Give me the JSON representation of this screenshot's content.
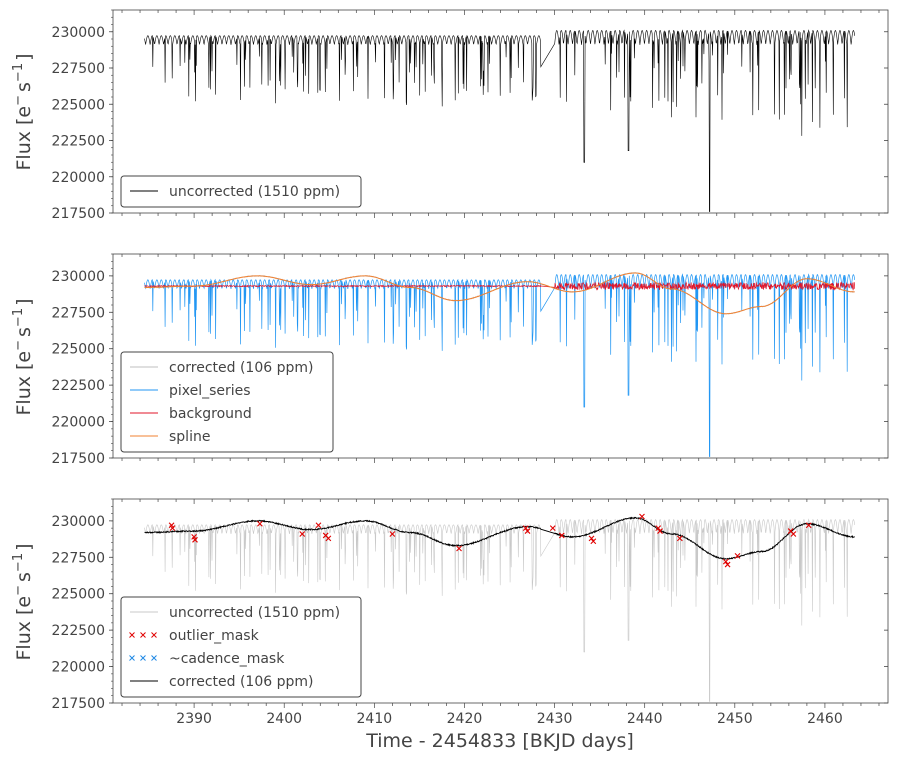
{
  "colors": {
    "uncorrected": "#000000",
    "uncorrected_faint": "#c8c8c8",
    "corrected_faint": "#bfbfbf",
    "pixel_series": "#2196f3",
    "background": "#e0152a",
    "spline": "#f08030",
    "outlier": "#e00000",
    "cadence": "#1e88e5",
    "corrected": "#000000",
    "text": "#444444"
  },
  "chart_data": [
    {
      "type": "line",
      "panel": "top",
      "ylabel_main": "Flux [e",
      "ylabel_sup1": "−",
      "ylabel_mid": "s",
      "ylabel_sup2": "−1",
      "ylabel_end": "]",
      "xlim": [
        2381,
        2467
      ],
      "ylim": [
        217500,
        231500
      ],
      "yticks": [
        217500,
        220000,
        222500,
        225000,
        227500,
        230000
      ],
      "ytick_labels": [
        "217500",
        "220000",
        "222500",
        "225000",
        "227500",
        "230000"
      ],
      "xticks": [
        2390,
        2400,
        2410,
        2420,
        2430,
        2440,
        2450,
        2460
      ],
      "legend": [
        {
          "label": "uncorrected (1510 ppm)",
          "style": "line",
          "color_key": "uncorrected"
        }
      ],
      "series": [
        {
          "name": "uncorrected (1510 ppm)",
          "x_start": 2384.5,
          "x_end": 2463.3,
          "baseline": 229300,
          "amplitude_ppm": 1510
        }
      ]
    },
    {
      "type": "line",
      "panel": "middle",
      "ylabel_main": "Flux [e",
      "ylabel_sup1": "−",
      "ylabel_mid": "s",
      "ylabel_sup2": "−1",
      "ylabel_end": "]",
      "xlim": [
        2381,
        2467
      ],
      "ylim": [
        217500,
        231500
      ],
      "yticks": [
        217500,
        220000,
        222500,
        225000,
        227500,
        230000
      ],
      "ytick_labels": [
        "217500",
        "220000",
        "222500",
        "225000",
        "227500",
        "230000"
      ],
      "xticks": [
        2390,
        2400,
        2410,
        2420,
        2430,
        2440,
        2450,
        2460
      ],
      "legend": [
        {
          "label": "corrected (106 ppm)",
          "style": "line",
          "color_key": "corrected_faint"
        },
        {
          "label": "pixel_series",
          "style": "line",
          "color_key": "pixel_series"
        },
        {
          "label": "background",
          "style": "line",
          "color_key": "background"
        },
        {
          "label": "spline",
          "style": "line",
          "color_key": "spline"
        }
      ],
      "series": [
        {
          "name": "corrected (106 ppm)",
          "baseline": 229300
        },
        {
          "name": "pixel_series",
          "baseline": 229300
        },
        {
          "name": "background",
          "baseline": 229300
        },
        {
          "name": "spline",
          "knots_x": [
            2384.5,
            2390,
            2397,
            2403,
            2409,
            2414,
            2419,
            2427,
            2432,
            2439,
            2443,
            2449,
            2453,
            2458,
            2463.3
          ],
          "knots_y": [
            229200,
            229300,
            230000,
            229400,
            230000,
            229200,
            228300,
            229600,
            228900,
            230200,
            229100,
            227400,
            227900,
            229800,
            228900
          ]
        }
      ]
    },
    {
      "type": "line",
      "panel": "bottom",
      "ylabel_main": "Flux [e",
      "ylabel_sup1": "−",
      "ylabel_mid": "s",
      "ylabel_sup2": "−1",
      "ylabel_end": "]",
      "xlabel": "Time - 2454833 [BKJD days]",
      "xlim": [
        2381,
        2467
      ],
      "ylim": [
        217500,
        231500
      ],
      "yticks": [
        217500,
        220000,
        222500,
        225000,
        227500,
        230000
      ],
      "ytick_labels": [
        "217500",
        "220000",
        "222500",
        "225000",
        "227500",
        "230000"
      ],
      "xticks": [
        2390,
        2400,
        2410,
        2420,
        2430,
        2440,
        2450,
        2460
      ],
      "xtick_labels": [
        "2390",
        "2400",
        "2410",
        "2420",
        "2430",
        "2440",
        "2450",
        "2460"
      ],
      "legend": [
        {
          "label": "uncorrected (1510 ppm)",
          "style": "line",
          "color_key": "uncorrected_faint"
        },
        {
          "label": "outlier_mask",
          "style": "x",
          "color_key": "outlier"
        },
        {
          "label": "~cadence_mask",
          "style": "x",
          "color_key": "cadence"
        },
        {
          "label": "corrected (106 ppm)",
          "style": "line",
          "color_key": "corrected"
        }
      ],
      "outliers": [
        {
          "x": 2387.5,
          "y": 229700
        },
        {
          "x": 2387.6,
          "y": 229500
        },
        {
          "x": 2390.0,
          "y": 228900
        },
        {
          "x": 2390.1,
          "y": 228700
        },
        {
          "x": 2397.3,
          "y": 229800
        },
        {
          "x": 2402.0,
          "y": 229100
        },
        {
          "x": 2403.8,
          "y": 229700
        },
        {
          "x": 2404.6,
          "y": 229000
        },
        {
          "x": 2404.9,
          "y": 228800
        },
        {
          "x": 2412.0,
          "y": 229100
        },
        {
          "x": 2419.4,
          "y": 228100
        },
        {
          "x": 2426.8,
          "y": 229500
        },
        {
          "x": 2427.0,
          "y": 229300
        },
        {
          "x": 2429.8,
          "y": 229500
        },
        {
          "x": 2430.8,
          "y": 229000
        },
        {
          "x": 2434.1,
          "y": 228800
        },
        {
          "x": 2434.3,
          "y": 228600
        },
        {
          "x": 2439.7,
          "y": 230300
        },
        {
          "x": 2441.5,
          "y": 229500
        },
        {
          "x": 2441.7,
          "y": 229300
        },
        {
          "x": 2443.9,
          "y": 228800
        },
        {
          "x": 2449.0,
          "y": 227200
        },
        {
          "x": 2449.2,
          "y": 227000
        },
        {
          "x": 2450.3,
          "y": 227600
        },
        {
          "x": 2456.2,
          "y": 229300
        },
        {
          "x": 2456.5,
          "y": 229100
        },
        {
          "x": 2458.2,
          "y": 229700
        }
      ]
    }
  ]
}
